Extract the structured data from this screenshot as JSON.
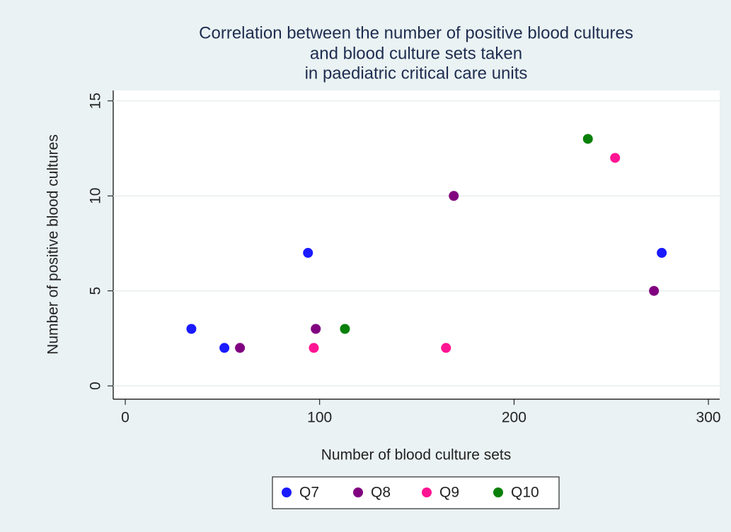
{
  "chart_data": {
    "type": "scatter",
    "title": [
      "Correlation between the number of positive blood cultures",
      "and blood culture sets taken",
      "in paediatric critical care units"
    ],
    "x_label": "Number of blood culture sets",
    "y_label": "Number of positive blood cultures",
    "xlim": [
      -6.2,
      305.8
    ],
    "xticks": [
      0,
      100,
      200,
      300
    ],
    "ylim": [
      -0.7,
      15.55
    ],
    "yticks": [
      0,
      5,
      10,
      15
    ],
    "grid": true,
    "legend": "bottom",
    "series": [
      {
        "name": "Q7",
        "color": "#1a1aff",
        "x": [
          34,
          51,
          94,
          276
        ],
        "values": [
          3,
          2,
          7,
          7
        ]
      },
      {
        "name": "Q8",
        "color": "#800080",
        "x": [
          59,
          98,
          169,
          272
        ],
        "values": [
          2,
          3,
          10,
          5
        ]
      },
      {
        "name": "Q9",
        "color": "#ff1493",
        "x": [
          97,
          165,
          252
        ],
        "values": [
          2,
          2,
          12
        ]
      },
      {
        "name": "Q10",
        "color": "#0a800a",
        "x": [
          113,
          238
        ],
        "values": [
          3,
          13
        ]
      }
    ]
  }
}
